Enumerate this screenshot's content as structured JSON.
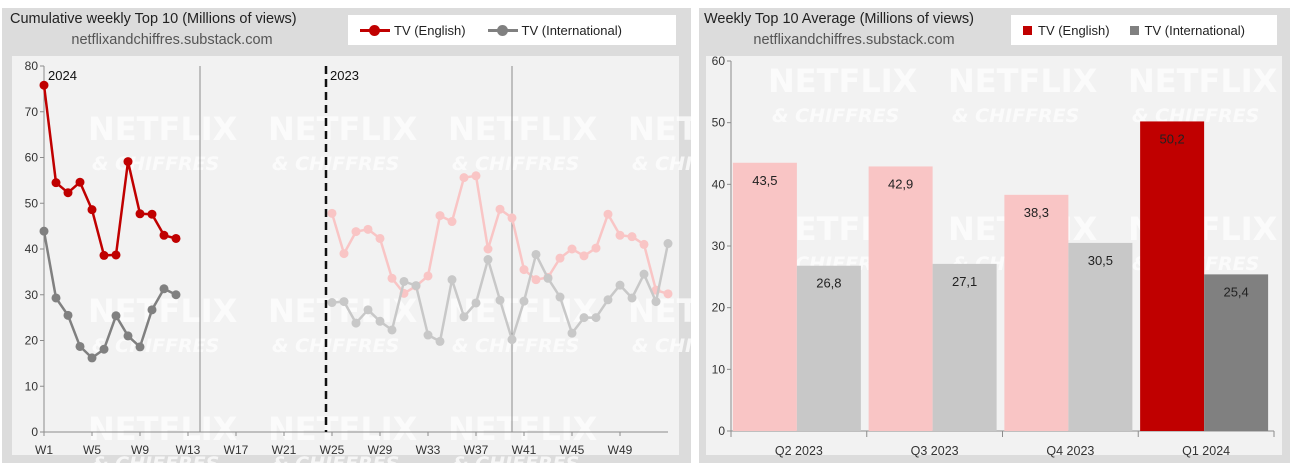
{
  "left": {
    "title": "Cumulative weekly Top 10 (Millions of views)",
    "subtitle": "netflixandchiffres.substack.com",
    "legend": [
      {
        "label": "TV (English)",
        "color": "#c00000"
      },
      {
        "label": "TV (International)",
        "color": "#808080"
      }
    ],
    "year_labels": [
      "2024",
      "2023"
    ],
    "watermark": [
      "NETFLIX",
      "& CHIFFRES"
    ]
  },
  "right": {
    "title": "Weekly Top 10 Average (Millions of views)",
    "subtitle": "netflixandchiffres.substack.com",
    "legend": [
      {
        "label": "TV (English)",
        "color": "#c00000"
      },
      {
        "label": "TV (International)",
        "color": "#808080"
      }
    ],
    "watermark": [
      "NETFLIX",
      "& CHIFFRES"
    ]
  },
  "chart_data": [
    {
      "type": "line",
      "title": "Cumulative weekly Top 10 (Millions of views)",
      "x_ticks": [
        "W1",
        "W5",
        "W9",
        "W13",
        "W17",
        "W21",
        "W25",
        "W29",
        "W33",
        "W37",
        "W41",
        "W45",
        "W49"
      ],
      "y_ticks": [
        0,
        10,
        20,
        30,
        40,
        50,
        60,
        70,
        80
      ],
      "ylim": [
        0,
        80
      ],
      "xlim": [
        1,
        53
      ],
      "gridlines_x": [
        14,
        40
      ],
      "divider_week": 24.5,
      "series": [
        {
          "name": "TV (English)",
          "year": "2024",
          "color": "#c00000",
          "x": [
            1,
            2,
            3,
            4,
            5,
            6,
            7,
            8,
            9,
            10,
            11,
            12
          ],
          "y": [
            75.8,
            54.5,
            52.3,
            54.6,
            48.6,
            38.6,
            38.7,
            59.1,
            47.7,
            47.6,
            43.0,
            42.3
          ]
        },
        {
          "name": "TV (International)",
          "year": "2024",
          "color": "#808080",
          "x": [
            1,
            2,
            3,
            4,
            5,
            6,
            7,
            8,
            9,
            10,
            11,
            12
          ],
          "y": [
            43.9,
            29.3,
            25.5,
            18.7,
            16.2,
            18.1,
            25.4,
            21.0,
            18.6,
            26.7,
            31.3,
            30.0
          ]
        },
        {
          "name": "TV (English)",
          "year": "2023",
          "color": "#f9c5c5",
          "x": [
            25,
            26,
            27,
            28,
            29,
            30,
            31,
            32,
            33,
            34,
            35,
            36,
            37,
            38,
            39,
            40,
            41,
            42,
            43,
            44,
            45,
            46,
            47,
            48,
            49,
            50,
            51,
            52,
            53
          ],
          "y": [
            47.8,
            39.0,
            43.8,
            44.3,
            42.3,
            33.6,
            30.3,
            31.9,
            34.1,
            47.3,
            46.0,
            55.6,
            56.0,
            40.0,
            48.7,
            46.8,
            35.5,
            33.3,
            33.8,
            38.0,
            40.0,
            38.5,
            40.2,
            47.6,
            43.0,
            42.7,
            41.0,
            31.0,
            30.2
          ]
        },
        {
          "name": "TV (International)",
          "year": "2023",
          "color": "#c8c8c8",
          "x": [
            25,
            26,
            27,
            28,
            29,
            30,
            31,
            32,
            33,
            34,
            35,
            36,
            37,
            38,
            39,
            40,
            41,
            42,
            43,
            44,
            45,
            46,
            47,
            48,
            49,
            50,
            51,
            52,
            53
          ],
          "y": [
            28.3,
            28.5,
            23.8,
            26.7,
            24.2,
            22.3,
            32.9,
            32.0,
            21.2,
            19.8,
            33.3,
            25.2,
            28.2,
            37.7,
            28.8,
            20.2,
            28.6,
            38.8,
            33.6,
            29.5,
            21.6,
            25.0,
            25.0,
            28.9,
            32.1,
            29.3,
            34.5,
            28.5,
            41.2
          ]
        }
      ]
    },
    {
      "type": "bar",
      "title": "Weekly Top 10 Average (Millions of views)",
      "categories": [
        "Q2 2023",
        "Q3 2023",
        "Q4 2023",
        "Q1 2024"
      ],
      "ylim": [
        0,
        60
      ],
      "y_ticks": [
        0,
        10,
        20,
        30,
        40,
        50,
        60
      ],
      "series": [
        {
          "name": "TV (English)",
          "values": [
            43.5,
            42.9,
            38.3,
            50.2
          ],
          "labels": [
            "43,5",
            "42,9",
            "38,3",
            "50,2"
          ],
          "colors": [
            "#f9c5c5",
            "#f9c5c5",
            "#f9c5c5",
            "#c00000"
          ]
        },
        {
          "name": "TV (International)",
          "values": [
            26.8,
            27.1,
            30.5,
            25.4
          ],
          "labels": [
            "26,8",
            "27,1",
            "30,5",
            "25,4"
          ],
          "colors": [
            "#c8c8c8",
            "#c8c8c8",
            "#c8c8c8",
            "#808080"
          ]
        }
      ]
    }
  ]
}
